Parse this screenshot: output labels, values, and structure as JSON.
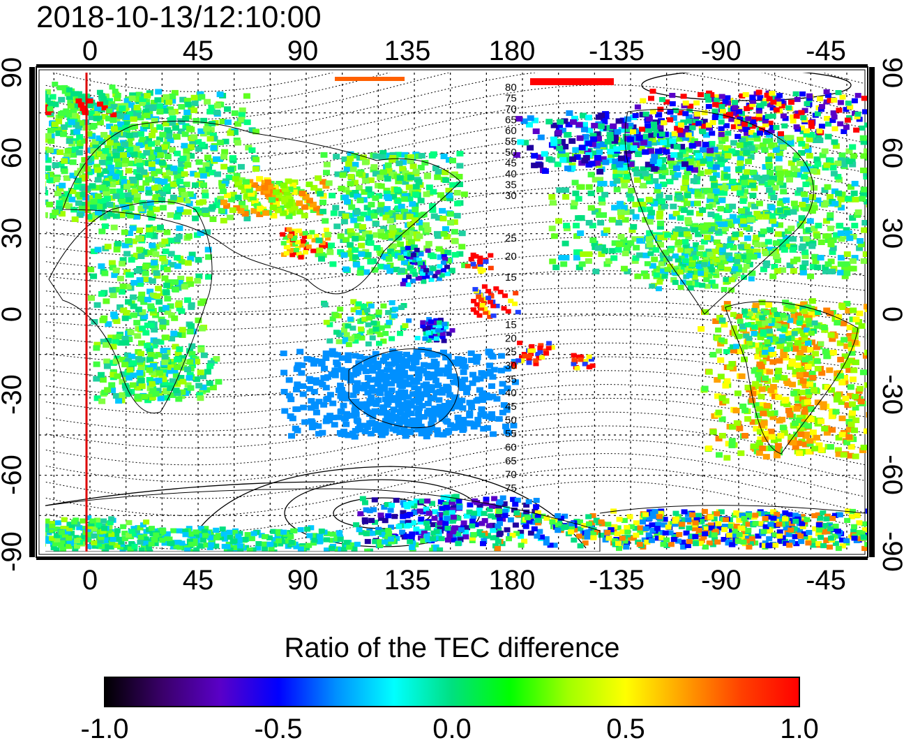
{
  "header": {
    "timestamp": "2018-10-13/12:10:00"
  },
  "map": {
    "lon_top_ticks": [
      "0",
      "45",
      "90",
      "135",
      "180",
      "-135",
      "-90",
      "-45"
    ],
    "lon_bottom_ticks": [
      "0",
      "45",
      "90",
      "135",
      "180",
      "-135",
      "-90",
      "-45"
    ],
    "lat_left_ticks": [
      "90",
      "60",
      "30",
      "0",
      "-30",
      "-60",
      "-90"
    ],
    "lat_right_ticks": [
      "90",
      "60",
      "30",
      "0",
      "-30",
      "-60",
      "-90"
    ],
    "contour_labels_north": [
      "80",
      "75",
      "70",
      "65",
      "60",
      "55",
      "50",
      "45",
      "40",
      "35",
      "30",
      "25",
      "20",
      "15"
    ],
    "contour_labels_south": [
      "15",
      "20",
      "25",
      "30",
      "35",
      "40",
      "45",
      "50",
      "55",
      "60",
      "65",
      "70",
      "75"
    ],
    "colors": {
      "line_red": "#dd0000",
      "frame": "#000000"
    }
  },
  "colorbar": {
    "title": "Ratio of the TEC difference",
    "tick_labels": [
      "-1.0",
      "-0.5",
      "0.0",
      "0.5",
      "1.0"
    ],
    "range": [
      -1.0,
      1.0
    ],
    "stops": [
      "#000000",
      "#3a006a",
      "#5a00c8",
      "#0000ff",
      "#0090ff",
      "#00ffff",
      "#00e080",
      "#00ff00",
      "#a0ff00",
      "#ffff00",
      "#ffa000",
      "#ff4000",
      "#ff0000"
    ]
  }
}
